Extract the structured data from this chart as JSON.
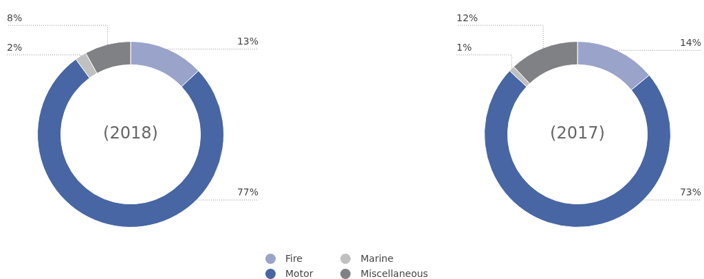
{
  "chart_data": [
    {
      "type": "donut",
      "title": "(2018)",
      "categories": [
        "Fire",
        "Motor",
        "Marine",
        "Miscellaneous"
      ],
      "values": [
        13,
        77,
        2,
        8
      ],
      "colors": [
        "#9aa3c9",
        "#4766a3",
        "#c0c0c0",
        "#808184"
      ],
      "value_labels": [
        "13%",
        "77%",
        "2%",
        "8%"
      ],
      "legend": "bottom"
    },
    {
      "type": "donut",
      "title": "(2017)",
      "categories": [
        null,
        null,
        null,
        null
      ],
      "values": [
        14,
        73,
        1,
        12
      ],
      "colors": [
        "#9aa3c9",
        "#4766a3",
        "#c0c0c0",
        "#808184"
      ],
      "value_labels": [
        "14%",
        "73%",
        "1%",
        "12%"
      ]
    }
  ]
}
